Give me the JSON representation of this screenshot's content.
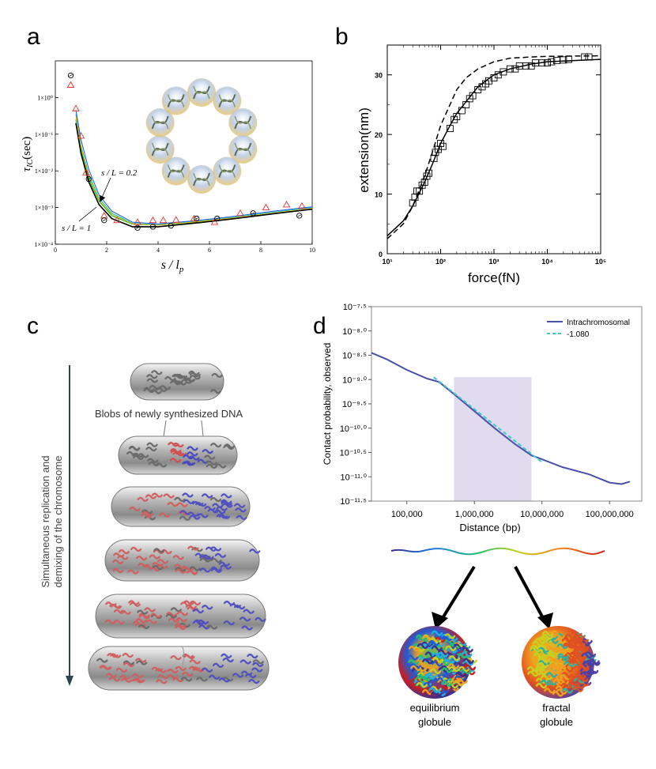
{
  "panels": {
    "a": "a",
    "b": "b",
    "c": "c",
    "d": "d"
  },
  "chart_data": [
    {
      "panel": "a",
      "type": "line",
      "xlabel": "s / l_p",
      "ylabel": "τ_IC(sec)",
      "xlim": [
        0,
        10
      ],
      "ylim": [
        0.0001,
        10
      ],
      "yscale": "log",
      "x_ticks": [
        "0",
        "2",
        "4",
        "6",
        "8",
        "10"
      ],
      "y_ticks": [
        "1×10⁻⁴",
        "1×10⁻³",
        "1×10⁻²",
        "1×10⁻¹",
        "1×10⁰"
      ],
      "annotations": [
        "s / L = 0.2",
        "s / L = 1"
      ],
      "series": [
        {
          "marker": "triangle",
          "color": "#e8312c",
          "x": [
            0.6,
            0.8,
            1.0,
            1.2,
            1.9,
            2.4,
            3.2,
            3.8,
            4.2,
            4.7,
            5.4,
            6.2,
            7.2,
            8.2,
            9.0,
            9.6
          ],
          "y": [
            2.2,
            0.5,
            0.09,
            0.009,
            0.0006,
            0.00045,
            0.0004,
            0.00045,
            0.00045,
            0.00046,
            0.0005,
            0.0004,
            0.0007,
            0.001,
            0.0012,
            0.0011
          ]
        },
        {
          "marker": "circle",
          "color": "#000000",
          "x": [
            0.6,
            1.3,
            1.9,
            3.2,
            3.8,
            4.5,
            5.5,
            6.3,
            7.7,
            9.5
          ],
          "y": [
            4.0,
            0.006,
            0.00045,
            0.00028,
            0.0003,
            0.00032,
            0.0005,
            0.0005,
            0.0007,
            0.0006
          ]
        },
        {
          "type": "curve",
          "color": "#00aa00",
          "x": [
            0.8,
            1.0,
            1.3,
            1.7,
            2.2,
            3.0,
            4.0,
            5.5,
            7.0,
            8.5,
            10
          ],
          "y": [
            0.25,
            0.04,
            0.006,
            0.0015,
            0.0006,
            0.00035,
            0.00033,
            0.0004,
            0.0005,
            0.0007,
            0.0009
          ]
        },
        {
          "type": "curve",
          "color": "#00bcd4",
          "x": [
            0.8,
            1.0,
            1.3,
            1.7,
            2.2,
            3.0,
            4.0,
            5.5,
            7.0,
            8.5,
            10
          ],
          "y": [
            0.35,
            0.05,
            0.008,
            0.0018,
            0.0007,
            0.00037,
            0.00034,
            0.00042,
            0.00055,
            0.00075,
            0.001
          ]
        },
        {
          "type": "curve",
          "color": "#1e5bd8",
          "x": [
            0.8,
            1.0,
            1.3,
            1.7,
            2.2,
            3.0,
            4.0,
            5.5,
            7.0,
            8.5,
            10
          ],
          "y": [
            0.45,
            0.07,
            0.011,
            0.0022,
            0.0008,
            0.0004,
            0.00036,
            0.00044,
            0.00058,
            0.0008,
            0.00105
          ]
        },
        {
          "type": "curve",
          "color": "#f2c200",
          "x": [
            0.8,
            1.0,
            1.3,
            1.7,
            2.2,
            3.0,
            4.0,
            5.5,
            7.0,
            8.5,
            10
          ],
          "y": [
            0.3,
            0.045,
            0.007,
            0.0016,
            0.00065,
            0.00036,
            0.00033,
            0.00041,
            0.00053,
            0.00072,
            0.00095
          ]
        },
        {
          "type": "curve",
          "color": "#000000",
          "x": [
            0.8,
            1.0,
            1.3,
            1.7,
            2.2,
            3.0,
            4.0,
            5.5,
            7.0,
            8.5,
            10
          ],
          "y": [
            0.2,
            0.03,
            0.005,
            0.0012,
            0.0005,
            0.0003,
            0.0003,
            0.00038,
            0.0005,
            0.00068,
            0.0009
          ]
        }
      ]
    },
    {
      "panel": "b",
      "type": "scatter",
      "xlabel": "force(fN)",
      "ylabel": "extension(nm)",
      "xscale": "log",
      "xlim": [
        10,
        100000
      ],
      "ylim": [
        0,
        35
      ],
      "x_ticks": [
        "10¹",
        "10²",
        "10³",
        "10⁴",
        "10⁵"
      ],
      "y_ticks": [
        "0",
        "10",
        "20",
        "30"
      ],
      "series": [
        {
          "marker": "square",
          "x": [
            30,
            33,
            36,
            40,
            45,
            50,
            55,
            60,
            75,
            80,
            90,
            100,
            110,
            150,
            180,
            200,
            250,
            300,
            350,
            400,
            500,
            600,
            700,
            800,
            1000,
            1200,
            1500,
            2000,
            2500,
            3000,
            4000,
            5000,
            6000,
            8000,
            10000,
            12000,
            15000,
            20000,
            25000,
            50000,
            60000
          ],
          "y": [
            8.5,
            9.5,
            10.5,
            10.5,
            11.5,
            12,
            13,
            13.5,
            16,
            17,
            17.5,
            18.5,
            18,
            21,
            22.5,
            23,
            24,
            25,
            26,
            26.5,
            27.5,
            28,
            28.5,
            29,
            29.5,
            30,
            30.5,
            31,
            31,
            31.5,
            31.5,
            31.5,
            32,
            32,
            32,
            32.2,
            32.4,
            32.5,
            32.6,
            33,
            33
          ]
        },
        {
          "type": "curve",
          "style": "dashed",
          "x": [
            10,
            20,
            30,
            50,
            70,
            100,
            150,
            200,
            300,
            500,
            1000,
            2000,
            5000,
            10000,
            100000
          ],
          "y": [
            2.5,
            5,
            8,
            13,
            17,
            21.5,
            25,
            27.5,
            29.5,
            31,
            32.2,
            32.8,
            33,
            33.1,
            33.2
          ]
        },
        {
          "type": "curve",
          "style": "solid",
          "x": [
            10,
            20,
            30,
            50,
            70,
            100,
            150,
            200,
            300,
            500,
            1000,
            2000,
            5000,
            10000,
            100000
          ],
          "y": [
            3,
            5.5,
            8,
            12,
            15,
            18.5,
            21.5,
            23.5,
            25.5,
            28,
            30,
            31,
            31.8,
            32.2,
            32.6
          ]
        }
      ]
    },
    {
      "panel": "d",
      "type": "line",
      "xlabel": "Distance (bp)",
      "ylabel": "Contact probability, observed",
      "xscale": "log",
      "x_ticks": [
        "100,000",
        "1,000,000",
        "10,000,000",
        "100,000,000"
      ],
      "y_ticks": [
        "10⁻⁷·⁵",
        "10⁻⁸·⁰",
        "10⁻⁸·⁵",
        "10⁻⁹·⁰",
        "10⁻⁹·⁵",
        "10⁻¹⁰·⁰",
        "10⁻¹⁰·⁵",
        "10⁻¹¹·⁰",
        "10⁻¹¹·⁵"
      ],
      "xlim": [
        30000,
        300000000
      ],
      "ylim": [
        -11.5,
        -7.5
      ],
      "shaded_range": [
        500000,
        7000000
      ],
      "legend_position": "top-right",
      "series": [
        {
          "name": "Intrachromosomal",
          "color": "#4b4fa8",
          "x": [
            30000,
            50000,
            100000,
            200000,
            300000,
            500000,
            1000000,
            2000000,
            4000000,
            7000000,
            10000000,
            20000000,
            50000000,
            100000000,
            150000000,
            200000000
          ],
          "y": [
            -8.45,
            -8.58,
            -8.8,
            -8.98,
            -9.05,
            -9.3,
            -9.65,
            -10.0,
            -10.33,
            -10.56,
            -10.64,
            -10.8,
            -10.95,
            -11.12,
            -11.15,
            -11.1
          ]
        },
        {
          "name": "-1.080",
          "color": "#3ec9c9",
          "style": "dashed",
          "x": [
            250000,
            10000000
          ],
          "y": [
            -8.95,
            -10.7
          ]
        }
      ]
    }
  ],
  "panel_c": {
    "vertical_label_line1": "Simultaneous replication and",
    "vertical_label_line2": "demixing of the chromosome",
    "callout": "Blobs of newly synthesized DNA"
  },
  "panel_d_labels": {
    "equilibrium_line1": "equilibrium",
    "equilibrium_line2": "globule",
    "fractal_line1": "fractal",
    "fractal_line2": "globule"
  }
}
